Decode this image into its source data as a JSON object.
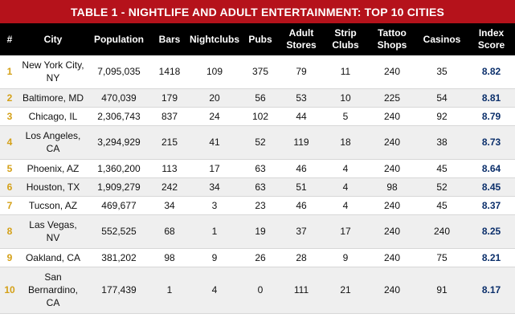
{
  "title": "TABLE 1 - NIGHTLIFE AND ADULT ENTERTAINMENT: TOP 10 CITIES",
  "headers": {
    "rank": "#",
    "city": "City",
    "population": "Population",
    "bars": "Bars",
    "nightclubs": "Nightclubs",
    "pubs": "Pubs",
    "adult_stores": "Adult Stores",
    "strip_clubs": "Strip Clubs",
    "tattoo_shops": "Tattoo Shops",
    "casinos": "Casinos",
    "index_score": "Index Score"
  },
  "rows": [
    {
      "rank": "1",
      "city": "New York City, NY",
      "population": "7,095,035",
      "bars": "1418",
      "nightclubs": "109",
      "pubs": "375",
      "adult_stores": "79",
      "strip_clubs": "11",
      "tattoo_shops": "240",
      "casinos": "35",
      "index_score": "8.82"
    },
    {
      "rank": "2",
      "city": "Baltimore, MD",
      "population": "470,039",
      "bars": "179",
      "nightclubs": "20",
      "pubs": "56",
      "adult_stores": "53",
      "strip_clubs": "10",
      "tattoo_shops": "225",
      "casinos": "54",
      "index_score": "8.81"
    },
    {
      "rank": "3",
      "city": "Chicago, IL",
      "population": "2,306,743",
      "bars": "837",
      "nightclubs": "24",
      "pubs": "102",
      "adult_stores": "44",
      "strip_clubs": "5",
      "tattoo_shops": "240",
      "casinos": "92",
      "index_score": "8.79"
    },
    {
      "rank": "4",
      "city": "Los Angeles, CA",
      "population": "3,294,929",
      "bars": "215",
      "nightclubs": "41",
      "pubs": "52",
      "adult_stores": "119",
      "strip_clubs": "18",
      "tattoo_shops": "240",
      "casinos": "38",
      "index_score": "8.73"
    },
    {
      "rank": "5",
      "city": "Phoenix, AZ",
      "population": "1,360,200",
      "bars": "113",
      "nightclubs": "17",
      "pubs": "63",
      "adult_stores": "46",
      "strip_clubs": "4",
      "tattoo_shops": "240",
      "casinos": "45",
      "index_score": "8.64"
    },
    {
      "rank": "6",
      "city": "Houston, TX",
      "population": "1,909,279",
      "bars": "242",
      "nightclubs": "34",
      "pubs": "63",
      "adult_stores": "51",
      "strip_clubs": "4",
      "tattoo_shops": "98",
      "casinos": "52",
      "index_score": "8.45"
    },
    {
      "rank": "7",
      "city": "Tucson, AZ",
      "population": "469,677",
      "bars": "34",
      "nightclubs": "3",
      "pubs": "23",
      "adult_stores": "46",
      "strip_clubs": "4",
      "tattoo_shops": "240",
      "casinos": "45",
      "index_score": "8.37"
    },
    {
      "rank": "8",
      "city": "Las Vegas, NV",
      "population": "552,525",
      "bars": "68",
      "nightclubs": "1",
      "pubs": "19",
      "adult_stores": "37",
      "strip_clubs": "17",
      "tattoo_shops": "240",
      "casinos": "240",
      "index_score": "8.25"
    },
    {
      "rank": "9",
      "city": "Oakland, CA",
      "population": "381,202",
      "bars": "98",
      "nightclubs": "9",
      "pubs": "26",
      "adult_stores": "28",
      "strip_clubs": "9",
      "tattoo_shops": "240",
      "casinos": "75",
      "index_score": "8.21"
    },
    {
      "rank": "10",
      "city": "San Bernardino, CA",
      "population": "177,439",
      "bars": "1",
      "nightclubs": "4",
      "pubs": "0",
      "adult_stores": "111",
      "strip_clubs": "21",
      "tattoo_shops": "240",
      "casinos": "91",
      "index_score": "8.17"
    }
  ]
}
